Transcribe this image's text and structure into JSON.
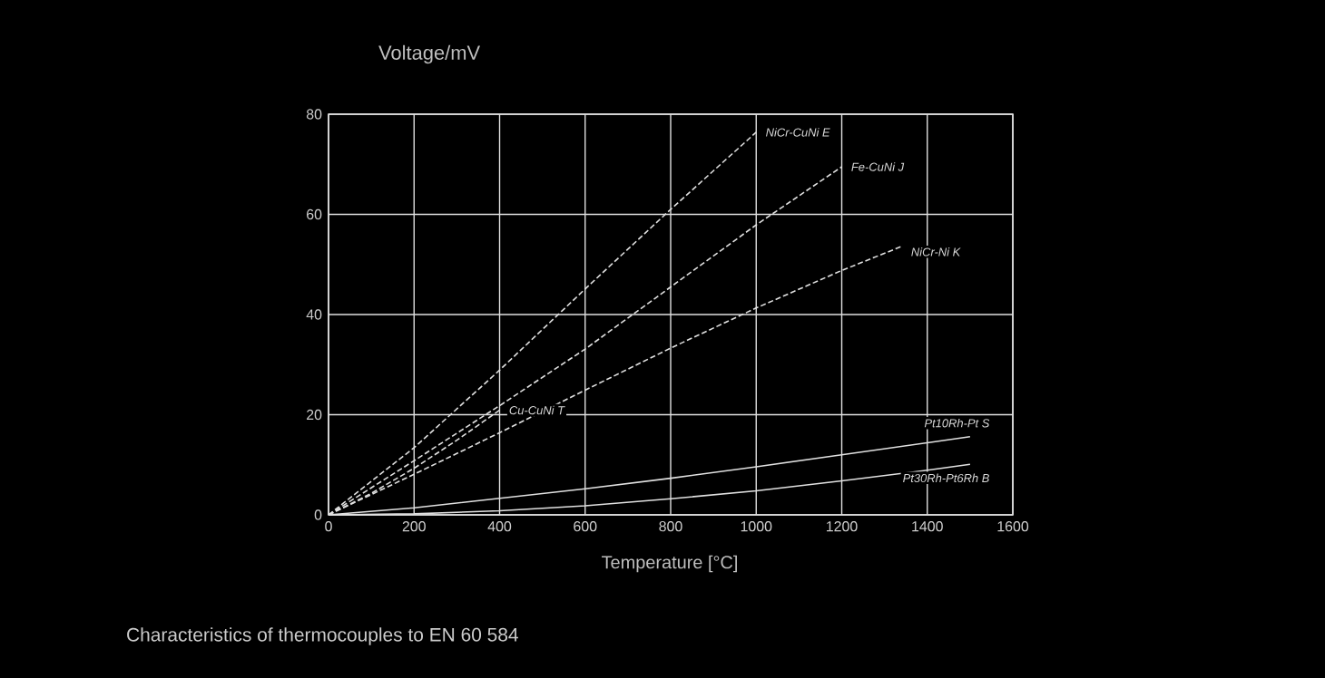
{
  "chart_data": {
    "type": "line",
    "xlabel": "Temperature [°C]",
    "ylabel": "Voltage/mV",
    "xlim": [
      0,
      1600
    ],
    "ylim": [
      0,
      80
    ],
    "xticks": [
      0,
      200,
      400,
      600,
      800,
      1000,
      1200,
      1400,
      1600
    ],
    "yticks": [
      0,
      20,
      40,
      60,
      80
    ],
    "grid": true,
    "series": [
      {
        "color": "#e0e0e0",
        "line_style": "dashed",
        "x": [
          0,
          200,
          400,
          600,
          800,
          1000
        ],
        "values": [
          0,
          13.4,
          28.9,
          45.1,
          61,
          76.4
        ]
      },
      {
        "color": "#e0e0e0",
        "line_style": "dashed",
        "x": [
          0,
          200,
          400,
          600,
          800,
          1000,
          1200
        ],
        "values": [
          0,
          10.8,
          21.8,
          33.1,
          45.5,
          57.9,
          69.5
        ]
      },
      {
        "color": "#e0e0e0",
        "line_style": "dashed",
        "x": [
          0,
          200,
          400,
          600,
          800,
          1000,
          1200,
          1340
        ],
        "values": [
          0,
          8.1,
          16.4,
          24.9,
          33.3,
          41.3,
          48.8,
          53.6
        ]
      },
      {
        "color": "#e0e0e0",
        "line_style": "dashed",
        "x": [
          0,
          100,
          200,
          300,
          400
        ],
        "values": [
          0,
          4.3,
          9.3,
          14.9,
          20.9
        ]
      },
      {
        "color": "#e0e0e0",
        "line_style": "solid",
        "x": [
          0,
          200,
          400,
          600,
          800,
          1000,
          1200,
          1400,
          1500
        ],
        "values": [
          0,
          1.4,
          3.3,
          5.2,
          7.3,
          9.6,
          12.0,
          14.4,
          15.6
        ]
      },
      {
        "color": "#e0e0e0",
        "line_style": "solid",
        "x": [
          0,
          200,
          400,
          600,
          800,
          1000,
          1200,
          1400,
          1500
        ],
        "values": [
          0,
          0.2,
          0.8,
          1.8,
          3.2,
          4.8,
          6.8,
          8.9,
          10.1
        ]
      }
    ],
    "annotations": [
      {
        "text": "NiCr-CuNi  E",
        "x": 1000,
        "y": 76.4
      },
      {
        "text": "Fe-CuNi  J",
        "x": 1200,
        "y": 69.5
      },
      {
        "text": "NiCr-Ni  K",
        "x": 1340,
        "y": 53.6
      },
      {
        "text": "Cu-CuNi  T",
        "x": 400,
        "y": 20.9
      },
      {
        "text": "Pt10Rh-Pt  S",
        "x": 1500,
        "y": 15.6
      },
      {
        "text": "Pt30Rh-Pt6Rh  B",
        "x": 1500,
        "y": 10.1
      },
      "Characteristics of thermocouples to EN 60 584"
    ]
  }
}
